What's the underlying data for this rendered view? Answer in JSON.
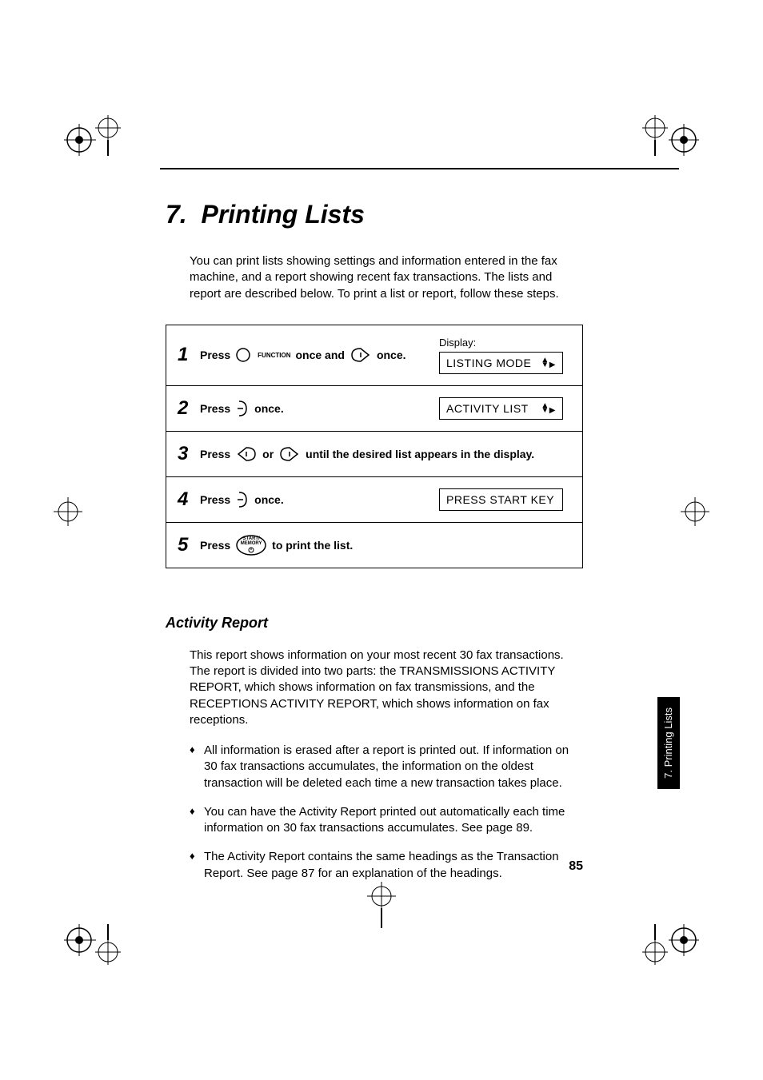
{
  "colors": {
    "text": "#000000",
    "background": "#ffffff",
    "tab_bg": "#000000",
    "tab_text": "#ffffff"
  },
  "chapter": {
    "number": "7.",
    "title": "Printing Lists"
  },
  "intro": "You can print lists showing settings and information entered in the fax machine, and a report showing recent fax transactions. The lists and report are described below. To print a list or report, follow these steps.",
  "display_label": "Display:",
  "steps": [
    {
      "num": "1",
      "parts": [
        "Press ",
        "{func-btn}",
        " once and ",
        "{right-arrow-btn}",
        " once."
      ],
      "display": "LISTING MODE",
      "show_display_label": true,
      "arrows": true
    },
    {
      "num": "2",
      "parts": [
        "Press ",
        "{enter-btn}",
        " once."
      ],
      "display": "ACTIVITY LIST",
      "show_display_label": false,
      "arrows": true
    },
    {
      "num": "3",
      "parts": [
        "Press ",
        "{left-arrow-btn}",
        " or ",
        "{right-arrow-btn}",
        " until the desired list appears in the display."
      ],
      "display": null
    },
    {
      "num": "4",
      "parts": [
        "Press ",
        "{enter-btn}",
        " once."
      ],
      "display": "PRESS START KEY",
      "show_display_label": false,
      "arrows": false
    },
    {
      "num": "5",
      "parts": [
        "Press ",
        "{start-btn}",
        " to print the list."
      ],
      "display": null
    }
  ],
  "buttons": {
    "function_label": "FUNCTION",
    "start_label_1": "START/",
    "start_label_2": "MEMORY"
  },
  "section": {
    "title": "Activity Report",
    "body": "This report shows information on your most recent 30 fax transactions. The report is divided into two parts: the TRANSMISSIONS ACTIVITY REPORT, which shows information on fax transmissions, and the RECEPTIONS ACTIVITY REPORT, which shows information on fax receptions.",
    "bullets": [
      "All information is erased after a report is printed out. If information on 30 fax transactions accumulates, the information on the oldest transaction will be deleted each time a new transaction takes place.",
      "You can have the Activity Report printed out automatically each time information on 30 fax transactions accumulates. See page 89.",
      "The Activity Report contains the same headings as the Transaction Report. See page 87 for an explanation of the headings."
    ]
  },
  "side_tab": "7. Printing\nLists",
  "page_number": "85"
}
